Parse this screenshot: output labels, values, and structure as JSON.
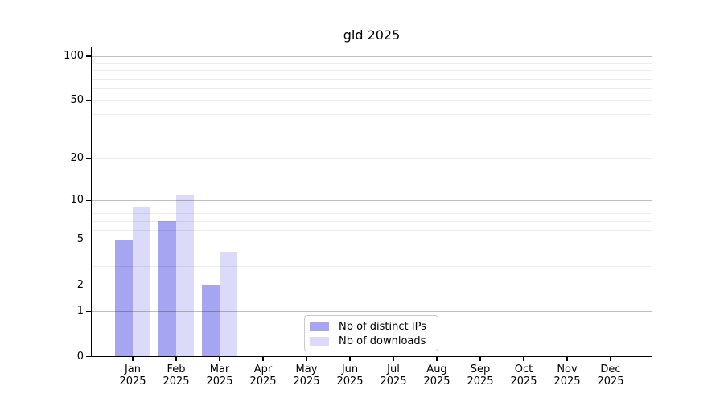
{
  "chart_data": {
    "type": "bar",
    "title": "gld 2025",
    "x_categories": [
      "Jan",
      "Feb",
      "Mar",
      "Apr",
      "May",
      "Jun",
      "Jul",
      "Aug",
      "Sep",
      "Oct",
      "Nov",
      "Dec"
    ],
    "x_year": "2025",
    "series": [
      {
        "name": "Nb of distinct IPs",
        "color": "#a5a5f2",
        "values": [
          5,
          7,
          2,
          0,
          0,
          0,
          0,
          0,
          0,
          0,
          0,
          0
        ]
      },
      {
        "name": "Nb of downloads",
        "color": "#dbdbf9",
        "values": [
          9,
          11,
          4,
          0,
          0,
          0,
          0,
          0,
          0,
          0,
          0,
          0
        ]
      }
    ],
    "y_axis": {
      "scale": "log1p",
      "tick_values": [
        0,
        1,
        2,
        5,
        10,
        20,
        50,
        100
      ],
      "tick_labels": [
        "0",
        "1",
        "2",
        "5",
        "10",
        "20",
        "50",
        "100"
      ],
      "max_value": 100
    },
    "grid": {
      "minor_values": [
        2,
        3,
        4,
        5,
        6,
        7,
        8,
        9,
        20,
        30,
        40,
        50,
        60,
        70,
        80,
        90
      ],
      "major_values": [
        1,
        10,
        100
      ],
      "minor_color": "rgba(0,0,0,0.075)",
      "major_color": "rgba(0,0,0,0.25)"
    },
    "legend_position": "bottom-center"
  }
}
